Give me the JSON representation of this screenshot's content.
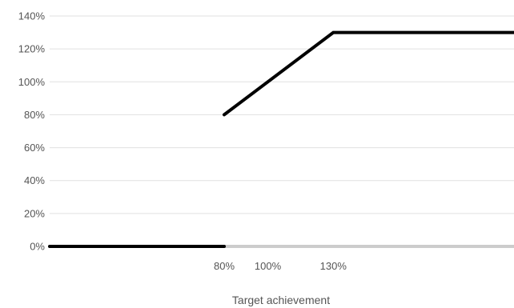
{
  "chart_data": {
    "type": "line",
    "title": "",
    "xlabel": "Target achievement",
    "ylabel": "",
    "x_range": [
      0,
      250
    ],
    "ylim": [
      0,
      140
    ],
    "grid": true,
    "x_ticks": [
      {
        "value": 80,
        "label": "80%"
      },
      {
        "value": 100,
        "label": "100%"
      },
      {
        "value": 130,
        "label": "130%"
      }
    ],
    "y_ticks": [
      {
        "value": 0,
        "label": "0%"
      },
      {
        "value": 20,
        "label": "20%"
      },
      {
        "value": 40,
        "label": "40%"
      },
      {
        "value": 60,
        "label": "60%"
      },
      {
        "value": 80,
        "label": "80%"
      },
      {
        "value": 100,
        "label": "100%"
      },
      {
        "value": 120,
        "label": "120%"
      },
      {
        "value": 140,
        "label": "140%"
      }
    ],
    "series": [
      {
        "segments": [
          [
            {
              "x": 0,
              "y": 0
            },
            {
              "x": 80,
              "y": 0
            }
          ],
          [
            {
              "x": 80,
              "y": 80
            },
            {
              "x": 130,
              "y": 130
            },
            {
              "x": 250,
              "y": 130
            }
          ]
        ]
      }
    ],
    "colors": {
      "line": "#000000",
      "grid": "#e0e0e0",
      "baseline": "#cccccc",
      "text": "#555555"
    }
  }
}
